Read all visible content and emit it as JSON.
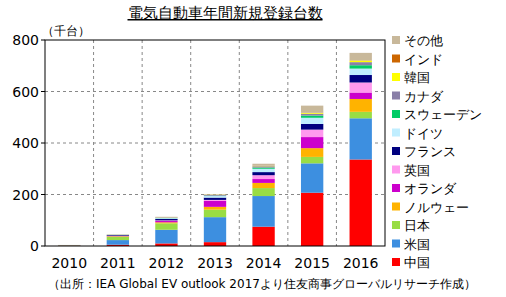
{
  "chart_data": {
    "type": "bar",
    "title": "電気自動車年間新規登録台数",
    "y_label": "（千台）",
    "source": "（出所：IEA Global EV outlook 2017より住友商事グローバルリサーチ作成）",
    "categories": [
      "2010",
      "2011",
      "2012",
      "2013",
      "2014",
      "2015",
      "2016"
    ],
    "stacked": true,
    "grid": true,
    "legend": "right",
    "ylim": [
      0,
      800
    ],
    "yticks": [
      0,
      200,
      400,
      600,
      800
    ],
    "series": [
      {
        "name": "中国",
        "color": "#ff0000",
        "values": [
          1,
          5,
          10,
          15,
          75,
          207,
          336
        ]
      },
      {
        "name": "米国",
        "color": "#3d8fe0",
        "values": [
          1,
          18,
          53,
          97,
          119,
          114,
          160
        ]
      },
      {
        "name": "日本",
        "color": "#99dd44",
        "values": [
          1,
          13,
          25,
          29,
          31,
          25,
          25
        ]
      },
      {
        "name": "ノルウェー",
        "color": "#ffb300",
        "values": [
          0.3,
          2,
          4,
          11,
          20,
          34,
          50
        ]
      },
      {
        "name": "オランダ",
        "color": "#cc00cc",
        "values": [
          0.1,
          1,
          5,
          23,
          15,
          43,
          25
        ]
      },
      {
        "name": "英国",
        "color": "#ff99ee",
        "values": [
          0.2,
          1,
          2.5,
          4,
          15,
          29,
          39
        ]
      },
      {
        "name": "フランス",
        "color": "#00007f",
        "values": [
          0.2,
          2.6,
          5.7,
          9,
          12,
          22,
          29
        ]
      },
      {
        "name": "ドイツ",
        "color": "#c0eeff",
        "values": [
          0.2,
          1,
          3,
          6,
          13,
          24,
          25
        ]
      },
      {
        "name": "スウェーデン",
        "color": "#00cc66",
        "values": [
          0,
          0.2,
          1,
          1.5,
          4.7,
          8.6,
          13
        ]
      },
      {
        "name": "カナダ",
        "color": "#8a7fa8",
        "values": [
          0,
          0.5,
          1.5,
          2.8,
          5,
          7,
          12
        ]
      },
      {
        "name": "韓国",
        "color": "#ffff00",
        "values": [
          0,
          0.3,
          0.5,
          0.8,
          1.3,
          3,
          6
        ]
      },
      {
        "name": "インド",
        "color": "#cc6600",
        "values": [
          0,
          0.1,
          0.2,
          0.3,
          0.5,
          0.5,
          1
        ]
      },
      {
        "name": "その他",
        "color": "#c8b89a",
        "values": [
          0.2,
          1,
          2,
          2,
          8,
          28,
          29
        ]
      }
    ]
  }
}
